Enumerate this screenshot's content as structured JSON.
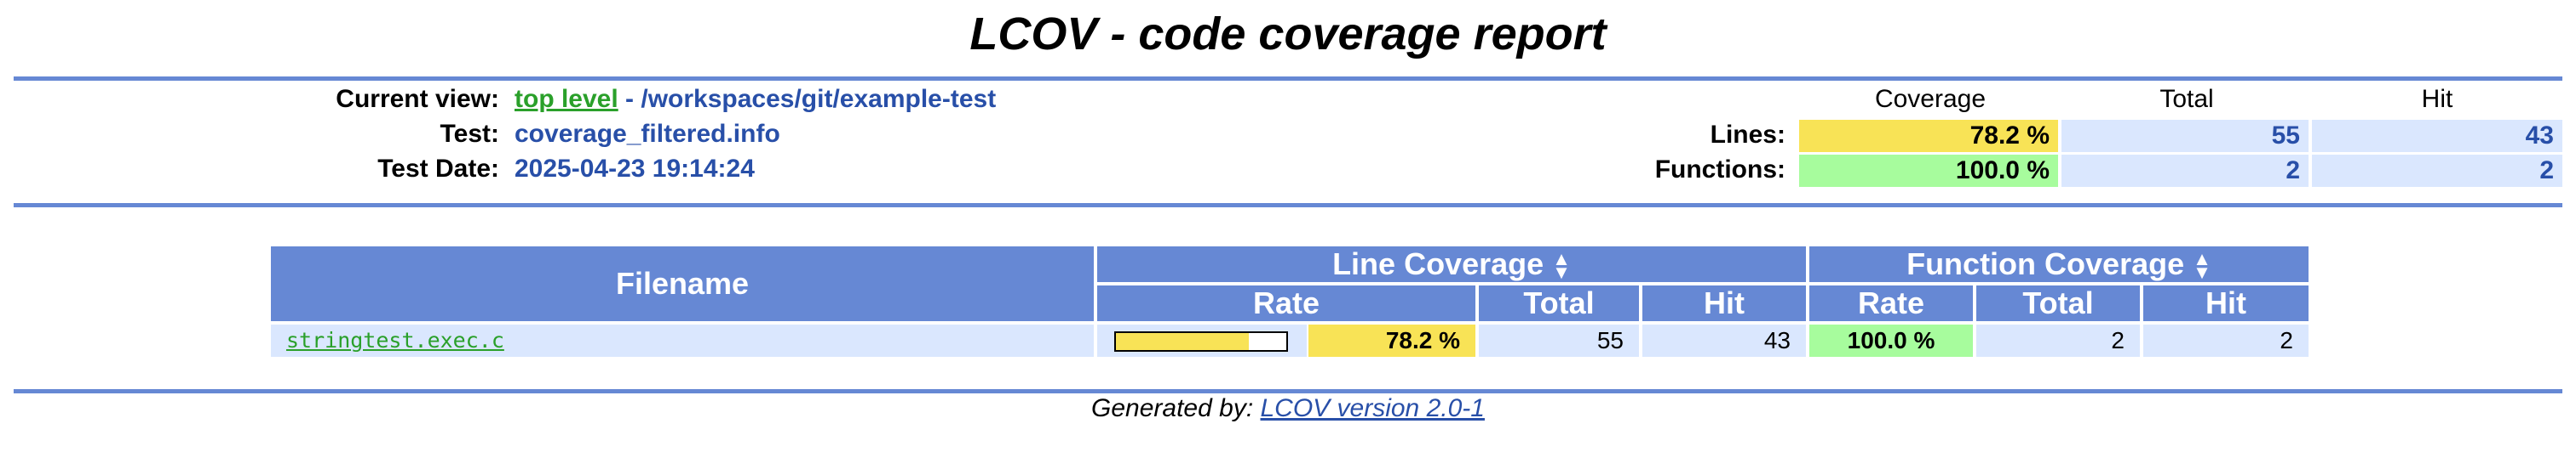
{
  "title": "LCOV - code coverage report",
  "header": {
    "current_view_label": "Current view:",
    "current_view_link": "top level",
    "current_view_path": " - /workspaces/git/example-test",
    "test_label": "Test:",
    "test_value": "coverage_filtered.info",
    "date_label": "Test Date:",
    "date_value": "2025-04-23 19:14:24"
  },
  "summary": {
    "col_coverage": "Coverage",
    "col_total": "Total",
    "col_hit": "Hit",
    "lines_label": "Lines:",
    "lines_rate": "78.2 %",
    "lines_total": "55",
    "lines_hit": "43",
    "functions_label": "Functions:",
    "functions_rate": "100.0 %",
    "functions_total": "2",
    "functions_hit": "2"
  },
  "table": {
    "filename_header": "Filename",
    "line_coverage_header": "Line Coverage",
    "function_coverage_header": "Function Coverage",
    "rate_header": "Rate",
    "total_header": "Total",
    "hit_header": "Hit",
    "sort_icon": "sort-arrows-icon",
    "rows": [
      {
        "filename": "stringtest.exec.c",
        "line_bar_fraction": 0.782,
        "line_rate": "78.2 %",
        "line_total": "55",
        "line_hit": "43",
        "func_rate": "100.0 %",
        "func_total": "2",
        "func_hit": "2"
      }
    ]
  },
  "footer": {
    "prefix": "Generated by: ",
    "link": "LCOV version 2.0-1"
  },
  "colors": {
    "ruler": "#6688d4",
    "header_bg": "#6688d4",
    "value_blue": "#284fa8",
    "cell_blue": "#dae7fe",
    "rate_medium": "#f8e356",
    "rate_high": "#a7fc9d",
    "link_green": "#2aa02a"
  }
}
